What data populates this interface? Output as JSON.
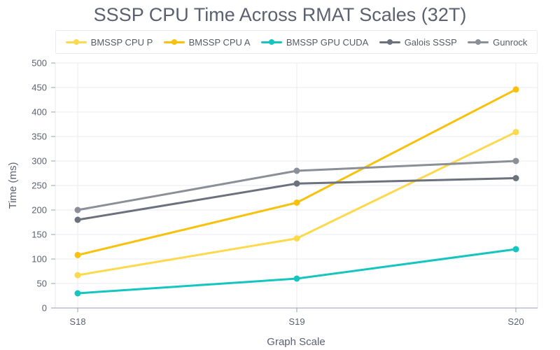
{
  "chart_data": {
    "type": "line",
    "title": "SSSP CPU Time Across RMAT Scales (32T)",
    "xlabel": "Graph Scale",
    "ylabel": "Time (ms)",
    "categories": [
      "S18",
      "S19",
      "S20"
    ],
    "ylim": [
      0,
      500
    ],
    "yticks": [
      0,
      50,
      100,
      150,
      200,
      250,
      300,
      350,
      400,
      450,
      500
    ],
    "grid": true,
    "legend_position": "top",
    "series": [
      {
        "name": "BMSSP CPU P",
        "color": "#fcd94d",
        "values": [
          67,
          142,
          359
        ]
      },
      {
        "name": "BMSSP CPU A",
        "color": "#f8c10c",
        "values": [
          108,
          215,
          446
        ]
      },
      {
        "name": "BMSSP GPU CUDA",
        "color": "#14c5c0",
        "values": [
          30,
          60,
          120
        ]
      },
      {
        "name": "Galois SSSP",
        "color": "#6b717d",
        "values": [
          180,
          254,
          265
        ]
      },
      {
        "name": "Gunrock",
        "color": "#8a8f98",
        "values": [
          200,
          280,
          300
        ]
      }
    ]
  }
}
